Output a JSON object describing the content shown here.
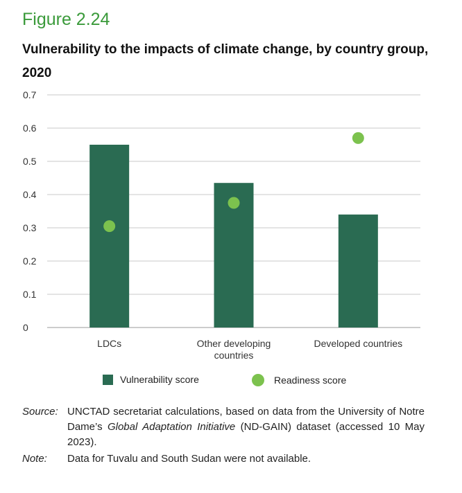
{
  "figure": {
    "label": "Figure 2.24",
    "title": "Vulnerability to the impacts of climate change, by country group, 2020"
  },
  "chart_data": {
    "type": "bar",
    "title": "Vulnerability to the impacts of climate change, by country group, 2020",
    "categories": [
      "LDCs",
      "Other developing countries",
      "Developed countries"
    ],
    "category_lines": [
      [
        "LDCs"
      ],
      [
        "Other developing",
        "countries"
      ],
      [
        "Developed countries"
      ]
    ],
    "series": [
      {
        "name": "Vulnerability score",
        "kind": "bar",
        "color": "#2a6b52",
        "values": [
          0.55,
          0.435,
          0.34
        ]
      },
      {
        "name": "Readiness score",
        "kind": "dot",
        "color": "#7cc24e",
        "values": [
          0.305,
          0.375,
          0.57
        ]
      }
    ],
    "ylim": [
      0,
      0.7
    ],
    "yticks": [
      0,
      0.1,
      0.2,
      0.3,
      0.4,
      0.5,
      0.6,
      0.7
    ],
    "ytick_labels": [
      "0",
      "0.1",
      "0.2",
      "0.3",
      "0.4",
      "0.5",
      "0.6",
      "0.7"
    ],
    "grid": true,
    "legend_position": "bottom",
    "xlabel": "",
    "ylabel": ""
  },
  "legend": {
    "vulnerability": "Vulnerability score",
    "readiness": "Readiness score"
  },
  "notes": {
    "source_label": "Source:",
    "source_pre": "UNCTAD secretariat calculations, based on data from the University of Notre Dame’s ",
    "source_italic": "Global Adaptation Initiative",
    "source_post": " (ND-GAIN) dataset (accessed 10 May 2023).",
    "note_label": "Note:",
    "note_text": "Data for Tuvalu and South Sudan were not available."
  }
}
